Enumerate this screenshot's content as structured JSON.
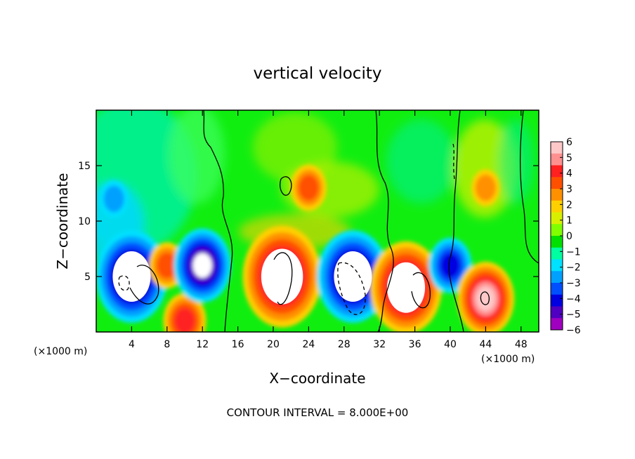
{
  "chart_data": {
    "type": "heatmap",
    "title": "vertical velocity",
    "xlabel": "X−coordinate",
    "ylabel": "Z−coordinate",
    "x_unit_left": "(×1000 m)",
    "x_unit_right": "(×1000 m)",
    "xlim": [
      0,
      50
    ],
    "ylim": [
      0,
      20
    ],
    "x_ticks": [
      4,
      8,
      12,
      16,
      20,
      24,
      28,
      32,
      36,
      40,
      44,
      48
    ],
    "y_ticks": [
      5,
      10,
      15
    ],
    "colorbar": {
      "min": -6,
      "max": 6,
      "tick_values": [
        6,
        5,
        4,
        3,
        2,
        1,
        0,
        -1,
        -2,
        -3,
        -4,
        -5,
        -6
      ],
      "tick_labels": [
        "6",
        "5",
        "4",
        "3",
        "2",
        "1",
        "0",
        "−1",
        "−2",
        "−3",
        "−4",
        "−5",
        "−6"
      ],
      "colors": [
        "#ffc8c8",
        "#ff9090",
        "#ff2020",
        "#ff5000",
        "#ff9000",
        "#ffd000",
        "#d8f000",
        "#80ff00",
        "#00e000",
        "#00ffa0",
        "#00e0ff",
        "#00a0ff",
        "#0050ff",
        "#0000e0",
        "#5000c0",
        "#a000c0"
      ]
    },
    "note": "CONTOUR INTERVAL =  8.000E+00",
    "cells": [
      {
        "x": 4,
        "z": 5,
        "value": -8
      },
      {
        "x": 8,
        "z": 6,
        "value": 3
      },
      {
        "x": 10,
        "z": 1,
        "value": 4
      },
      {
        "x": 12,
        "z": 6,
        "value": -6
      },
      {
        "x": 21,
        "z": 5,
        "value": 9
      },
      {
        "x": 24,
        "z": 13,
        "value": 3
      },
      {
        "x": 29,
        "z": 5,
        "value": -8
      },
      {
        "x": 35,
        "z": 4,
        "value": 8
      },
      {
        "x": 40,
        "z": 6,
        "value": -4
      },
      {
        "x": 44,
        "z": 3,
        "value": 6
      },
      {
        "x": 44,
        "z": 13,
        "value": 2
      },
      {
        "x": 2,
        "z": 12,
        "value": -2
      }
    ]
  }
}
